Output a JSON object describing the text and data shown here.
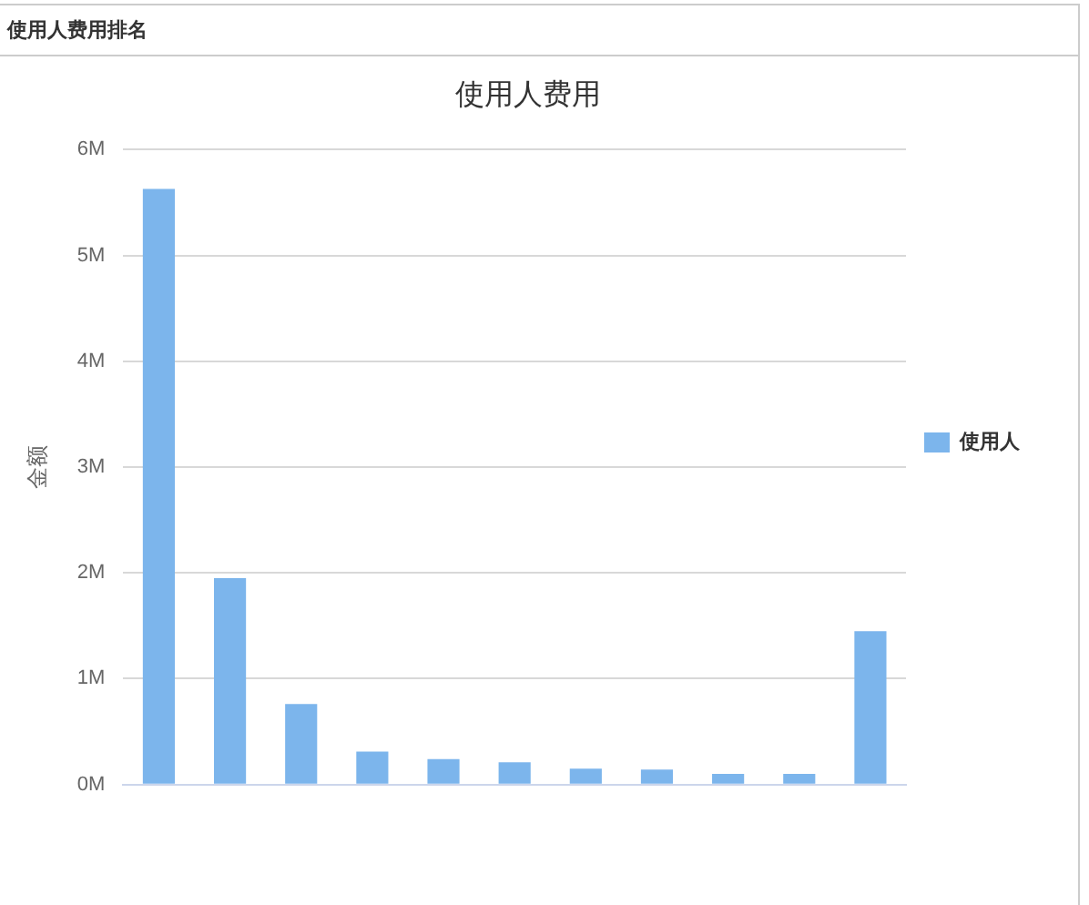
{
  "chart_data": {
    "type": "bar",
    "title": "使用人费用",
    "annotations": [
      "使用人费用排名"
    ],
    "ylabel": "金额",
    "categories": [
      null,
      null,
      null,
      null,
      null,
      null,
      null,
      null,
      null,
      null,
      null
    ],
    "series": [
      {
        "name": "使用人",
        "color": "#7cb5ec",
        "values": [
          5.63,
          1.95,
          0.76,
          0.31,
          0.24,
          0.21,
          0.15,
          0.14,
          0.1,
          0.1,
          1.45
        ]
      }
    ],
    "ylim": [
      0,
      6
    ],
    "yticks": [
      {
        "value": 0,
        "label": "0M"
      },
      {
        "value": 1,
        "label": "1M"
      },
      {
        "value": 2,
        "label": "2M"
      },
      {
        "value": 3,
        "label": "3M"
      },
      {
        "value": 4,
        "label": "4M"
      },
      {
        "value": 5,
        "label": "5M"
      },
      {
        "value": 6,
        "label": "6M"
      }
    ],
    "grid": "y",
    "legend": "right"
  }
}
